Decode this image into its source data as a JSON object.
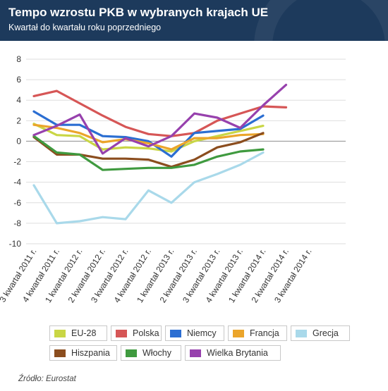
{
  "title": "Tempo wzrostu PKB w wybranych krajach UE",
  "subtitle": "Kwartał do kwartału roku poprzedniego",
  "source": "Źródło: Eurostat",
  "chart_data": {
    "type": "line",
    "categories": [
      "3 kwartał 2011 r.",
      "4 kwartał 2011 r.",
      "1 kwartał 2012 r.",
      "2 kwartał 2012 r.",
      "3 kwartał 2012 r.",
      "4 kwartał 2012 r.",
      "1 kwartał 2013 r.",
      "2 kwartał 2013 r.",
      "3 kwartał 2013 r.",
      "4 kwartał 2013 r.",
      "1 kwartał 2014 r.",
      "2 kwartał 2014 r.",
      "3 kwartał 2014 r."
    ],
    "ylim": [
      -10,
      8
    ],
    "yticks": [
      8,
      6,
      4,
      2,
      0,
      -2,
      -4,
      -6,
      -8,
      -10
    ],
    "grid": true,
    "legend_position": "bottom",
    "series": [
      {
        "name": "EU-28",
        "color": "#c9d645",
        "values": [
          1.7,
          0.6,
          0.5,
          -0.8,
          -0.6,
          -0.7,
          -1.0,
          0.0,
          0.5,
          1.0,
          1.5,
          null,
          null
        ]
      },
      {
        "name": "Polska",
        "color": "#d65656",
        "values": [
          4.4,
          4.9,
          3.7,
          2.5,
          1.4,
          0.7,
          0.5,
          0.8,
          2.0,
          2.7,
          3.4,
          3.3,
          null
        ]
      },
      {
        "name": "Niemcy",
        "color": "#2b6ed2",
        "values": [
          2.9,
          1.6,
          1.6,
          0.5,
          0.4,
          0.0,
          -1.5,
          0.8,
          1.0,
          1.2,
          2.5,
          null,
          null
        ]
      },
      {
        "name": "Francja",
        "color": "#eba52b",
        "values": [
          1.6,
          1.3,
          0.8,
          -0.1,
          0.2,
          -0.2,
          -0.8,
          0.3,
          0.3,
          0.6,
          0.7,
          null,
          null
        ]
      },
      {
        "name": "Grecja",
        "color": "#a9d9ea",
        "values": [
          -4.3,
          -8.0,
          -7.8,
          -7.4,
          -7.6,
          -4.8,
          -6.0,
          -4.0,
          -3.2,
          -2.3,
          -1.1,
          null,
          null
        ]
      },
      {
        "name": "Hiszpania",
        "color": "#8b4d1e",
        "values": [
          0.4,
          -1.3,
          -1.3,
          -1.7,
          -1.7,
          -1.8,
          -2.5,
          -1.8,
          -0.6,
          -0.1,
          0.8,
          null,
          null
        ]
      },
      {
        "name": "Włochy",
        "color": "#3f9a3f",
        "values": [
          0.5,
          -1.1,
          -1.3,
          -2.8,
          -2.7,
          -2.6,
          -2.6,
          -2.3,
          -1.5,
          -1.0,
          -0.8,
          null,
          null
        ]
      },
      {
        "name": "Wielka Brytania",
        "color": "#9741ad",
        "values": [
          0.6,
          1.5,
          2.6,
          -1.2,
          0.3,
          -0.5,
          0.5,
          2.7,
          2.3,
          1.3,
          3.5,
          5.5,
          null
        ]
      }
    ]
  }
}
